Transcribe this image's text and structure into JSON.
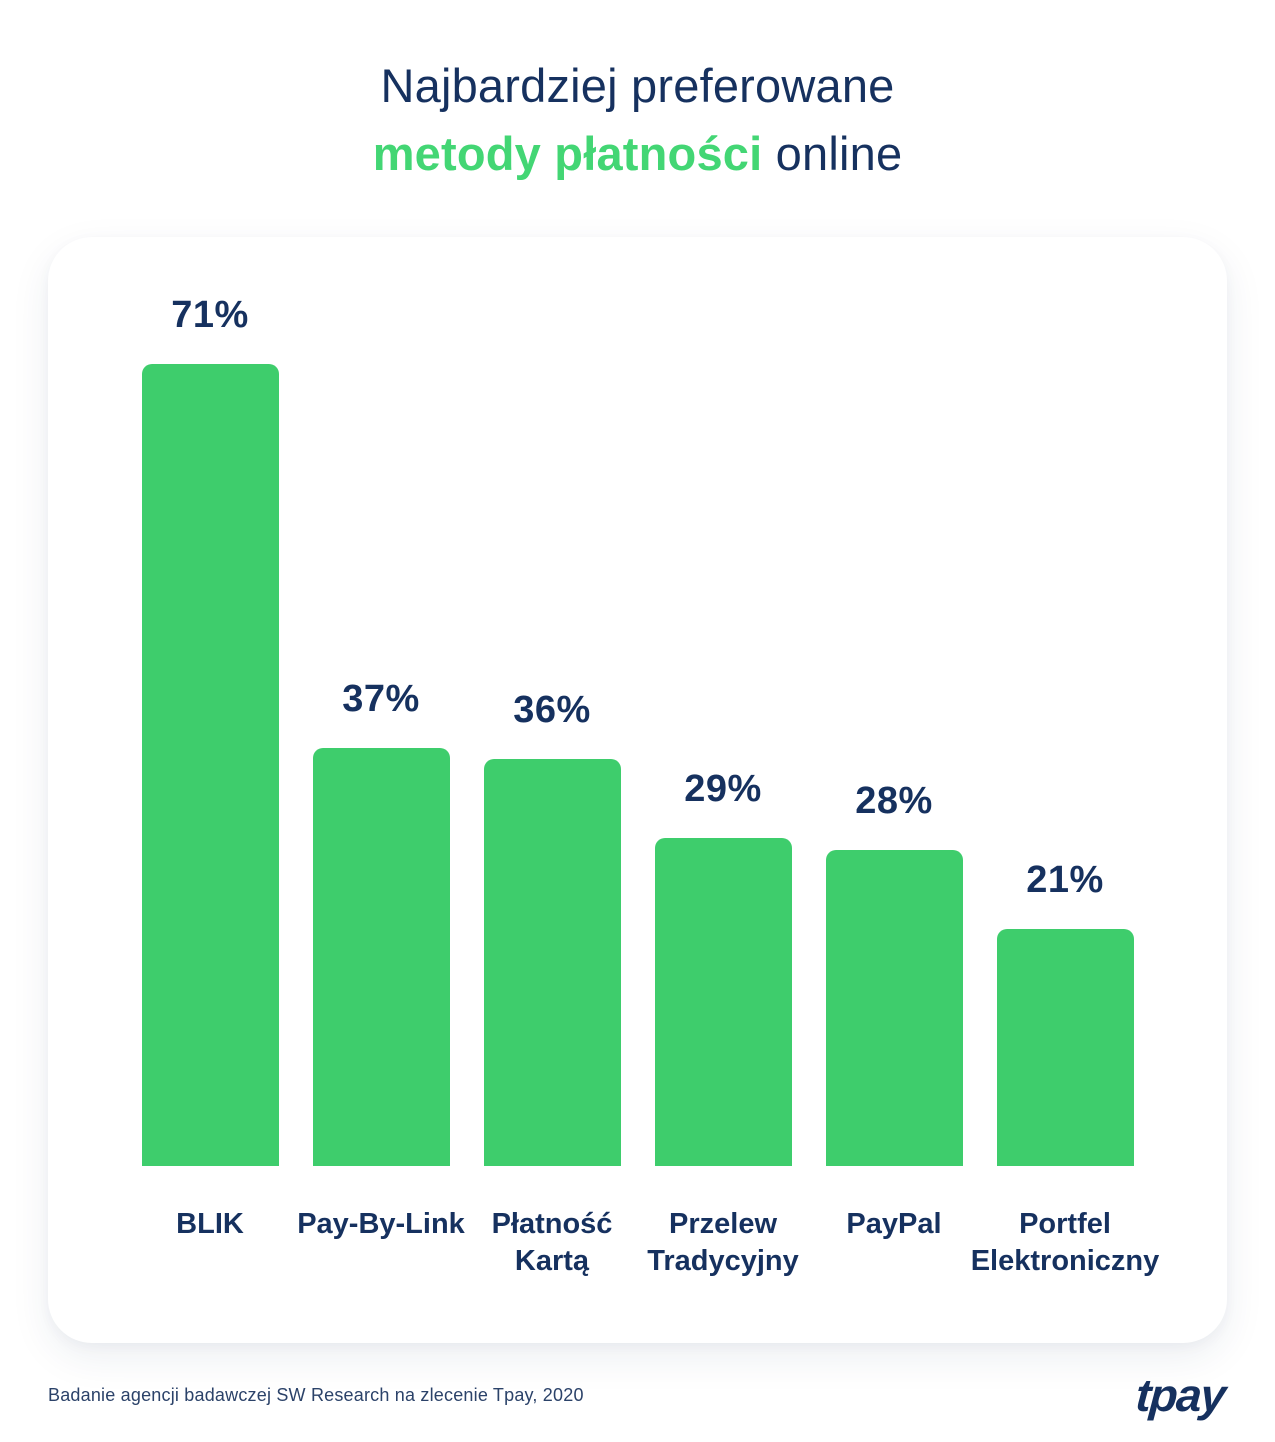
{
  "title": {
    "line1": "Najbardziej preferowane",
    "line2_highlight": "metody płatności",
    "line2_rest": " online"
  },
  "footer": {
    "source": "Badanie agencji badawczej SW Research na zlecenie Tpay, 2020",
    "logo": "tpay"
  },
  "colors": {
    "navy": "#16315F",
    "green_bar": "#3ECD6C",
    "green_text": "#43D674",
    "muted_navy": "#2B4269",
    "card_bg": "#FFFFFF",
    "page_bg": "#FFFFFF"
  },
  "chart_data": {
    "type": "bar",
    "title": "Najbardziej preferowane metody płatności online",
    "categories": [
      "BLIK",
      "Pay-By-Link",
      "Płatność\nKartą",
      "Przelew\nTradycyjny",
      "PayPal",
      "Portfel\nElektroniczny"
    ],
    "values": [
      71,
      37,
      36,
      29,
      28,
      21
    ],
    "value_labels": [
      "71%",
      "37%",
      "36%",
      "29%",
      "28%",
      "21%"
    ],
    "xlabel": "",
    "ylabel": "",
    "ylim": [
      0,
      80
    ],
    "unit": "%",
    "bar_color": "#3ECD6C",
    "grid": false,
    "legend": false,
    "value_label_position": "above-bar",
    "orientation": "vertical"
  }
}
